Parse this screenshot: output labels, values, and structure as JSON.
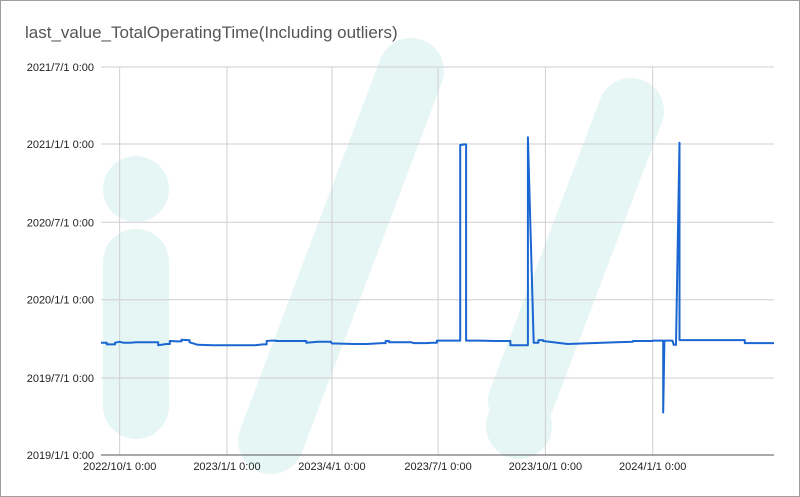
{
  "chart_data": {
    "type": "line",
    "title": "last_value_TotalOperatingTime(Including outliers)",
    "xlabel": "",
    "ylabel": "",
    "x_ticks": [
      "2022/10/1 0:00",
      "2023/1/1 0:00",
      "2023/4/1 0:00",
      "2023/7/1 0:00",
      "2023/10/1 0:00",
      "2024/1/1 0:00"
    ],
    "y_ticks": [
      "2019/1/1 0:00",
      "2019/7/1 0:00",
      "2020/1/1 0:00",
      "2020/7/1 0:00",
      "2021/1/1 0:00",
      "2021/7/1 0:00"
    ],
    "xlim": [
      "2022-09-15",
      "2024-04-14"
    ],
    "ylim": [
      "2019-01-01",
      "2021-07-01"
    ],
    "grid": true,
    "legend": "none",
    "color": "#1a66d2",
    "series": [
      {
        "x": [
          "2022-09-15",
          "2022-09-20",
          "2022-09-20",
          "2022-09-27",
          "2022-09-27",
          "2022-10-01",
          "2022-10-04",
          "2022-10-10",
          "2022-10-15",
          "2022-10-20",
          "2022-10-28",
          "2022-11-03",
          "2022-11-03",
          "2022-11-10",
          "2022-11-13",
          "2022-11-13",
          "2022-11-20",
          "2022-11-23",
          "2022-11-23",
          "2022-11-28",
          "2022-11-30",
          "2022-11-30",
          "2022-12-07",
          "2022-12-20",
          "2023-01-10",
          "2023-01-25",
          "2023-02-01",
          "2023-02-04",
          "2023-02-04",
          "2023-02-08",
          "2023-02-12",
          "2023-02-12",
          "2023-03-01",
          "2023-03-10",
          "2023-03-10",
          "2023-03-20",
          "2023-03-26",
          "2023-03-31",
          "2023-04-01",
          "2023-04-04",
          "2023-04-04",
          "2023-04-20",
          "2023-05-01",
          "2023-05-14",
          "2023-05-17",
          "2023-05-17",
          "2023-05-20",
          "2023-05-20",
          "2023-06-01",
          "2023-06-08",
          "2023-06-10",
          "2023-06-20",
          "2023-06-27",
          "2023-06-30",
          "2023-06-30",
          "2023-07-15",
          "2023-07-20",
          "2023-07-20",
          "2023-07-22",
          "2023-07-22",
          "2023-07-25",
          "2023-07-25",
          "2023-08-05",
          "2023-08-20",
          "2023-08-31",
          "2023-09-01",
          "2023-09-01",
          "2023-09-16",
          "2023-09-16",
          "2023-09-21",
          "2023-09-23",
          "2023-09-25",
          "2023-09-25",
          "2023-09-29",
          "2023-09-29",
          "2023-10-20",
          "2023-11-10",
          "2023-12-01",
          "2023-12-15",
          "2023-12-15",
          "2024-01-01",
          "2024-01-01",
          "2024-01-10",
          "2024-01-10",
          "2024-01-11",
          "2024-01-12",
          "2024-01-18",
          "2024-01-18",
          "2024-01-19",
          "2024-01-21",
          "2024-01-21",
          "2024-01-24",
          "2024-01-24",
          "2024-02-01",
          "2024-02-15",
          "2024-03-01",
          "2024-03-05",
          "2024-03-05",
          "2024-03-15",
          "2024-03-20",
          "2024-03-20",
          "2024-04-14"
        ],
        "y": [
          "2019-09-22",
          "2019-09-22",
          "2019-09-18",
          "2019-09-18",
          "2019-09-22",
          "2019-09-24",
          "2019-09-22",
          "2019-09-22",
          "2019-09-23",
          "2019-09-23",
          "2019-09-23",
          "2019-09-23",
          "2019-09-16",
          "2019-09-19",
          "2019-09-19",
          "2019-09-26",
          "2019-09-25",
          "2019-09-25",
          "2019-09-29",
          "2019-09-28",
          "2019-09-28",
          "2019-09-23",
          "2019-09-17",
          "2019-09-16",
          "2019-09-16",
          "2019-09-16",
          "2019-09-18",
          "2019-09-18",
          "2019-09-26",
          "2019-09-27",
          "2019-09-27",
          "2019-09-26",
          "2019-09-26",
          "2019-09-26",
          "2019-09-22",
          "2019-09-24",
          "2019-09-24",
          "2019-09-24",
          "2019-09-20",
          "2019-09-20",
          "2019-09-20",
          "2019-09-19",
          "2019-09-19",
          "2019-09-21",
          "2019-09-21",
          "2019-09-26",
          "2019-09-26",
          "2019-09-23",
          "2019-09-23",
          "2019-09-23",
          "2019-09-21",
          "2019-09-21",
          "2019-09-22",
          "2019-09-22",
          "2019-09-27",
          "2019-09-27",
          "2019-09-27",
          "2020-12-30",
          "2020-12-30",
          "2020-12-31",
          "2020-12-31",
          "2019-09-27",
          "2019-09-27",
          "2019-09-26",
          "2019-09-26",
          "2019-09-26",
          "2019-09-16",
          "2019-09-16",
          "2021-01-17",
          "2019-09-22",
          "2019-09-22",
          "2019-09-22",
          "2019-09-28",
          "2019-09-28",
          "2019-09-26",
          "2019-09-19",
          "2019-09-21",
          "2019-09-23",
          "2019-09-24",
          "2019-09-26",
          "2019-09-26",
          "2019-09-27",
          "2019-09-27",
          "2019-04-11",
          "2019-09-27",
          "2019-09-27",
          "2019-09-27",
          "2019-09-27",
          "2019-09-17",
          "2019-09-17",
          "2019-09-17",
          "2021-01-04",
          "2019-09-28",
          "2019-09-28",
          "2019-09-28",
          "2019-09-28",
          "2019-09-28",
          "2019-09-28",
          "2019-09-28",
          "2019-09-28",
          "2019-09-21",
          "2019-09-21"
        ]
      }
    ]
  }
}
